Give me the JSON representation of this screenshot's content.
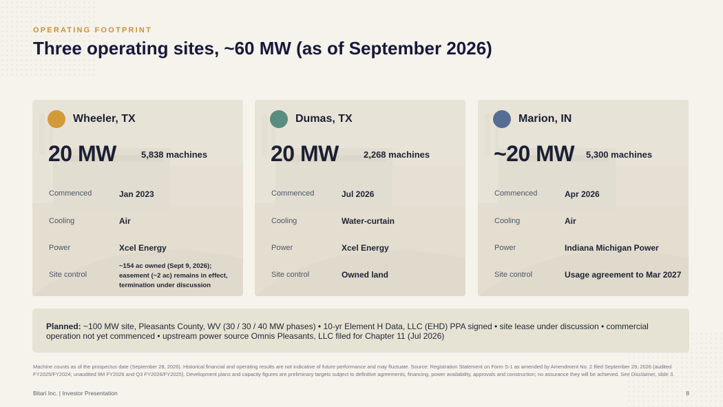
{
  "header": {
    "eyebrow": "OPERATING FOOTPRINT",
    "title": "Three operating sites, ~60 MW (as of September 2026)"
  },
  "sites": [
    {
      "name": "Wheeler, TX",
      "color": "#d29a3a",
      "capacity": "20 MW",
      "machines": "5,838 machines",
      "rows": [
        {
          "label": "Commenced",
          "value": "Jan 2023"
        },
        {
          "label": "Cooling",
          "value": "Air"
        },
        {
          "label": "Power",
          "value": "Xcel Energy"
        },
        {
          "label": "Site control",
          "value": "~154 ac owned (Sept 9, 2026); easement (~2 ac) remains in effect, termination under discussion"
        }
      ]
    },
    {
      "name": "Dumas, TX",
      "color": "#5a8c80",
      "capacity": "20 MW",
      "machines": "2,268 machines",
      "rows": [
        {
          "label": "Commenced",
          "value": "Jul 2026"
        },
        {
          "label": "Cooling",
          "value": "Water-curtain"
        },
        {
          "label": "Power",
          "value": "Xcel Energy"
        },
        {
          "label": "Site control",
          "value": "Owned land"
        }
      ]
    },
    {
      "name": "Marion, IN",
      "color": "#566e92",
      "capacity": "~20 MW",
      "machines": "5,300 machines",
      "rows": [
        {
          "label": "Commenced",
          "value": "Apr 2026"
        },
        {
          "label": "Cooling",
          "value": "Air"
        },
        {
          "label": "Power",
          "value": "Indiana Michigan Power"
        },
        {
          "label": "Site control",
          "value": "Usage agreement to Mar 2027"
        }
      ]
    }
  ],
  "planned": {
    "label": "Planned:",
    "text": "~100 MW site, Pleasants County, WV (30 / 30 / 40 MW phases) • 10-yr Element H Data, LLC (EHD) PPA signed • site lease under discussion • commercial operation not yet commenced • upstream power source Omnis Pleasants, LLC filed for Chapter 11 (Jul 2026)"
  },
  "disclaimer": "Machine counts as of the prospectus date (September 28, 2026). Historical financial and operating results are not indicative of future performance and may fluctuate. Source: Registration Statement on Form S-1 as amended by Amendment No. 2 filed September 29, 2026 (audited FY2025/FY2024; unaudited 9M FY2026 and Q3 FY2026/FY2025). Development plans and capacity figures are preliminary targets subject to definitive agreements, financing, power availability, approvals and construction; no assurance they will be achieved. See Disclaimer, slide 3.",
  "footer": {
    "left": "Bitari Inc.  |  Investor Presentation",
    "page": "8"
  }
}
